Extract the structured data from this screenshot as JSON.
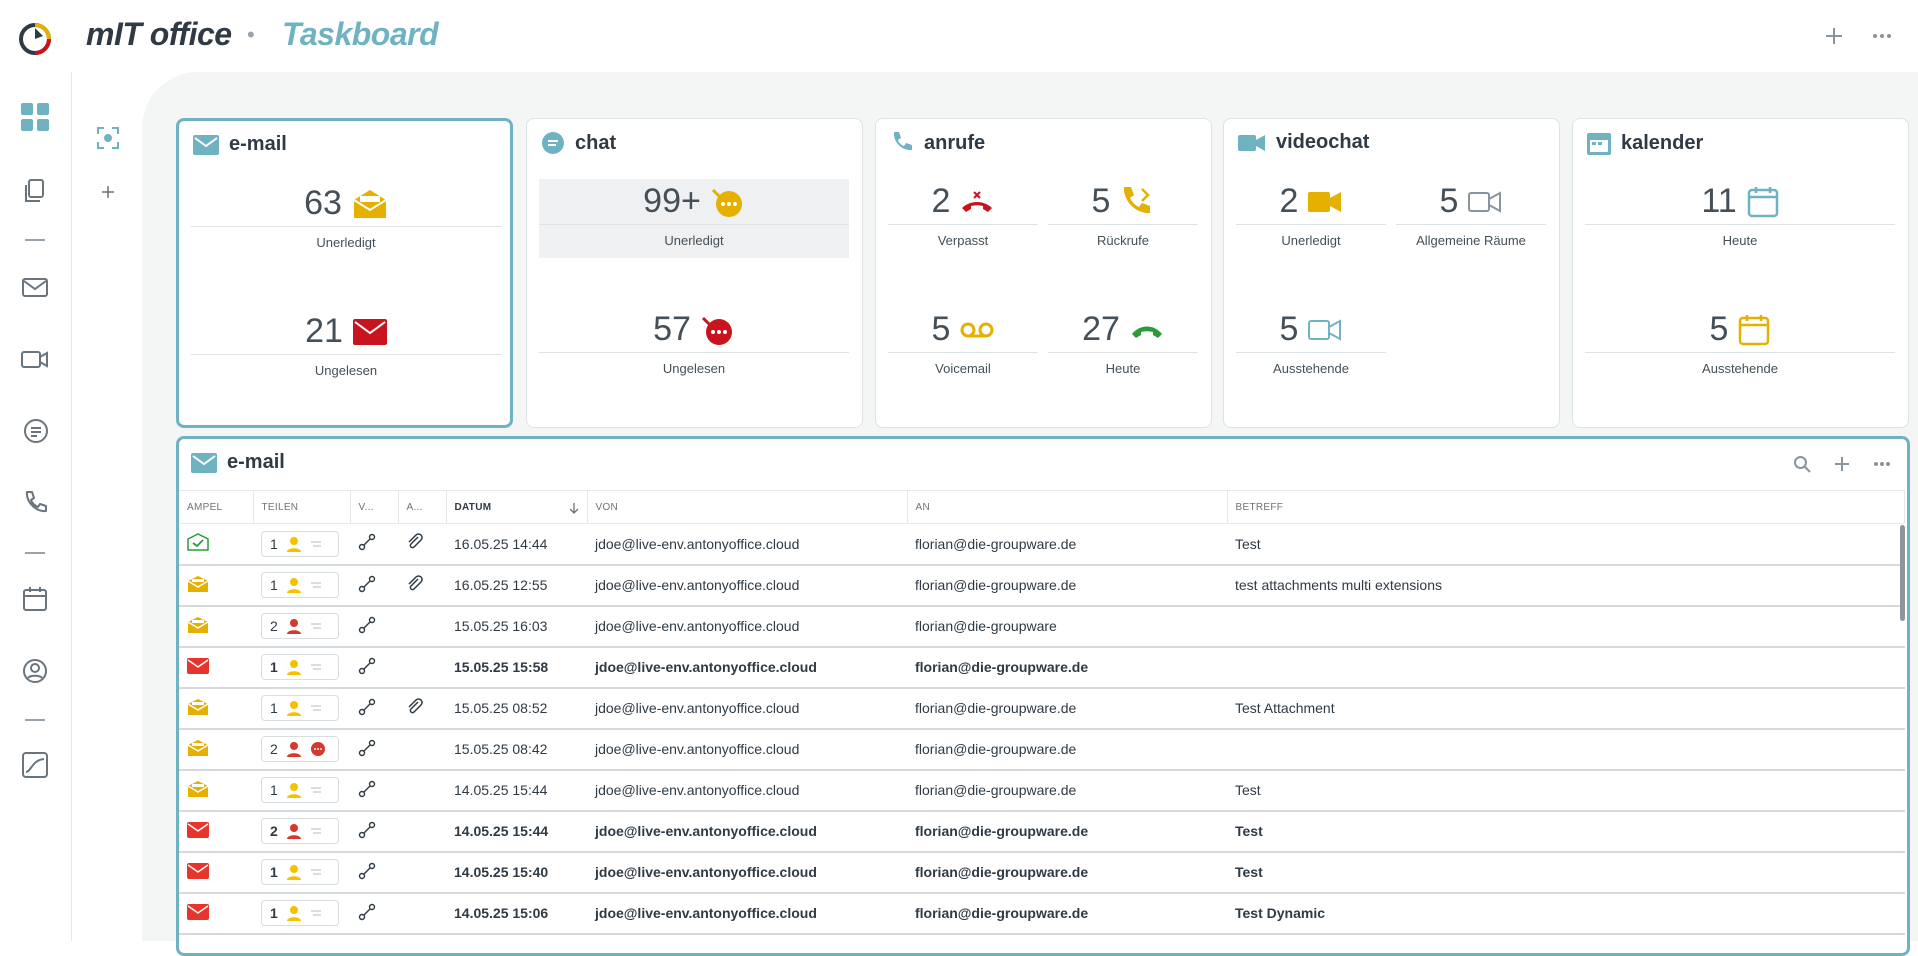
{
  "header": {
    "app_title": "mIT office",
    "separator": "•",
    "page_title": "Taskboard"
  },
  "colors": {
    "accent": "#6fb3c2",
    "yellow": "#e5b000",
    "red": "#c8141e",
    "green": "#2e9b3a"
  },
  "cards": {
    "email": {
      "title": "e-mail",
      "s1_num": "63",
      "s1_label": "Unerledigt",
      "s2_num": "21",
      "s2_label": "Ungelesen"
    },
    "chat": {
      "title": "chat",
      "s1_num": "99+",
      "s1_label": "Unerledigt",
      "s2_num": "57",
      "s2_label": "Ungelesen"
    },
    "calls": {
      "title": "anrufe",
      "s1_num": "2",
      "s1_label": "Verpasst",
      "s2_num": "5",
      "s2_label": "Rückrufe",
      "s3_num": "5",
      "s3_label": "Voicemail",
      "s4_num": "27",
      "s4_label": "Heute"
    },
    "video": {
      "title": "videochat",
      "s1_num": "2",
      "s1_label": "Unerledigt",
      "s2_num": "5",
      "s2_label": "Allgemeine Räume",
      "s3_num": "5",
      "s3_label": "Ausstehende"
    },
    "calendar": {
      "title": "kalender",
      "s1_num": "11",
      "s1_label": "Heute",
      "s2_num": "5",
      "s2_label": "Ausstehende"
    }
  },
  "table": {
    "title": "e-mail",
    "columns": {
      "ampel": "AMPEL",
      "teilen": "TEILEN",
      "v": "V...",
      "a": "A...",
      "datum": "DATUM",
      "von": "VON",
      "an": "AN",
      "betreff": "BETREFF"
    },
    "rows": [
      {
        "status": "done",
        "share": "1",
        "person": "yellow",
        "chat": false,
        "attach": true,
        "date": "16.05.25 14:44",
        "from": "jdoe@live-env.antonyoffice.cloud",
        "to": "florian@die-groupware.de",
        "subject": "Test",
        "unread": false
      },
      {
        "status": "open",
        "share": "1",
        "person": "yellow",
        "chat": false,
        "attach": true,
        "date": "16.05.25 12:55",
        "from": "jdoe@live-env.antonyoffice.cloud",
        "to": "florian@die-groupware.de",
        "subject": "test attachments multi extensions",
        "unread": false
      },
      {
        "status": "open",
        "share": "2",
        "person": "red",
        "chat": false,
        "attach": false,
        "date": "15.05.25 16:03",
        "from": "jdoe@live-env.antonyoffice.cloud",
        "to": "florian@die-groupware",
        "subject": "",
        "unread": false
      },
      {
        "status": "unread",
        "share": "1",
        "person": "yellow",
        "chat": false,
        "attach": false,
        "date": "15.05.25 15:58",
        "from": "jdoe@live-env.antonyoffice.cloud",
        "to": "florian@die-groupware.de",
        "subject": "",
        "unread": true
      },
      {
        "status": "open",
        "share": "1",
        "person": "yellow",
        "chat": false,
        "attach": true,
        "date": "15.05.25 08:52",
        "from": "jdoe@live-env.antonyoffice.cloud",
        "to": "florian@die-groupware.de",
        "subject": "Test Attachment",
        "unread": false
      },
      {
        "status": "open",
        "share": "2",
        "person": "red",
        "chat": true,
        "attach": false,
        "date": "15.05.25 08:42",
        "from": "jdoe@live-env.antonyoffice.cloud",
        "to": "florian@die-groupware.de",
        "subject": "",
        "unread": false
      },
      {
        "status": "open",
        "share": "1",
        "person": "yellow",
        "chat": false,
        "attach": false,
        "date": "14.05.25 15:44",
        "from": "jdoe@live-env.antonyoffice.cloud",
        "to": "florian@die-groupware.de",
        "subject": "Test",
        "unread": false
      },
      {
        "status": "unread",
        "share": "2",
        "person": "red",
        "chat": false,
        "attach": false,
        "date": "14.05.25 15:44",
        "from": "jdoe@live-env.antonyoffice.cloud",
        "to": "florian@die-groupware.de",
        "subject": "Test",
        "unread": true
      },
      {
        "status": "unread",
        "share": "1",
        "person": "yellow",
        "chat": false,
        "attach": false,
        "date": "14.05.25 15:40",
        "from": "jdoe@live-env.antonyoffice.cloud",
        "to": "florian@die-groupware.de",
        "subject": "Test",
        "unread": true
      },
      {
        "status": "unread",
        "share": "1",
        "person": "yellow",
        "chat": false,
        "attach": false,
        "date": "14.05.25 15:06",
        "from": "jdoe@live-env.antonyoffice.cloud",
        "to": "florian@die-groupware.de",
        "subject": "Test Dynamic",
        "unread": true
      }
    ]
  }
}
